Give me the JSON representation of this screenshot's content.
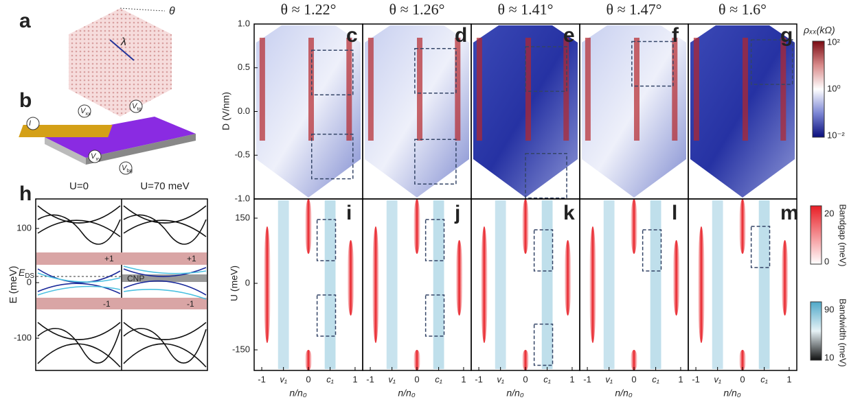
{
  "figure": {
    "letters": {
      "a": "a",
      "b": "b",
      "h": "h"
    },
    "lattice": {
      "theta": "θ",
      "lambda": "λ"
    },
    "device_labels": [
      {
        "main": "I",
        "sub": ""
      },
      {
        "main": "V",
        "sub": "xx"
      },
      {
        "main": "V",
        "sub": "tg"
      },
      {
        "main": "V",
        "sub": "xy"
      },
      {
        "main": "V",
        "sub": "bg"
      }
    ],
    "band_panel": {
      "titles": [
        "U=0",
        "U=70 meV"
      ],
      "y_label": "E (meV)",
      "y_ticks": [
        "100",
        "0",
        "-100"
      ],
      "eds": {
        "main": "E",
        "sub": "DS"
      },
      "gap_labels": [
        "+1",
        "-1",
        "+1",
        "-1"
      ],
      "cnp": "CNP"
    },
    "columns": [
      {
        "theta": "θ ≈ 1.22°",
        "top_letter": "c",
        "bottom_letter": "i"
      },
      {
        "theta": "θ ≈ 1.26°",
        "top_letter": "d",
        "bottom_letter": "j"
      },
      {
        "theta": "θ ≈ 1.41°",
        "top_letter": "e",
        "bottom_letter": "k"
      },
      {
        "theta": "θ ≈ 1.47°",
        "top_letter": "f",
        "bottom_letter": "l"
      },
      {
        "theta": "θ ≈ 1.6°",
        "top_letter": "g",
        "bottom_letter": "m"
      }
    ],
    "top_axis": {
      "label": "D (V/nm)",
      "ticks": [
        "1.0",
        "0.5",
        "0.0",
        "-0.5",
        "-1.0"
      ]
    },
    "bottom_axis": {
      "label": "U (meV)",
      "ticks": [
        "150",
        "0",
        "-150"
      ]
    },
    "x_axis": {
      "label": "n/n₀",
      "ticks": [
        "-1",
        "v₁",
        "0",
        "c₁",
        "1"
      ]
    },
    "colorbars": {
      "rho": {
        "label": "ρₓₓ(kΩ)",
        "ticks": [
          "10²",
          "10⁰",
          "10⁻²"
        ]
      },
      "gap": {
        "label": "Bandgap (meV)",
        "ticks": [
          "20",
          "0"
        ]
      },
      "width": {
        "label": "Bandwidth (meV)",
        "ticks": [
          "90",
          "10"
        ]
      }
    }
  }
}
